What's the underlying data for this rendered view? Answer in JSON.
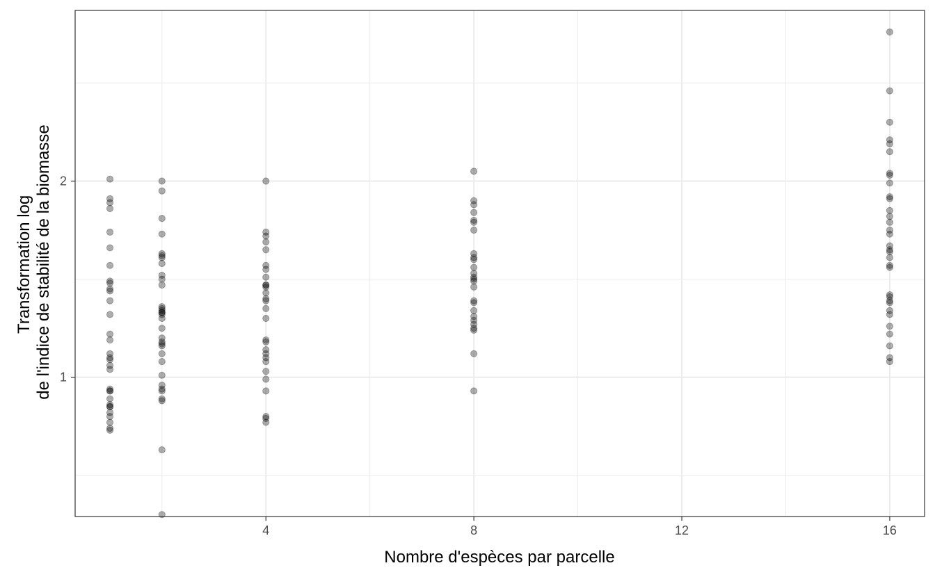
{
  "chart_data": {
    "type": "scatter",
    "xlabel": "Nombre d'espèces par parcelle",
    "ylabel_lines": [
      "Transformation log",
      "de l'indice de stabilité de la biomasse"
    ],
    "xlim": [
      0.33,
      16.67
    ],
    "ylim": [
      0.29,
      2.87
    ],
    "x_ticks": [
      4,
      8,
      12,
      16
    ],
    "x_minor_ticks": [
      2,
      6,
      10,
      14
    ],
    "y_ticks": [
      1,
      2
    ],
    "y_minor_ticks": [
      0.5,
      1.5,
      2.5
    ],
    "x_tick_labels": [
      "4",
      "8",
      "12",
      "16"
    ],
    "y_tick_labels": [
      "1",
      "2"
    ],
    "grid": true,
    "point_color": "#000000",
    "point_alpha": 0.32,
    "panel_border_color": "#333333",
    "grid_color": "#ebebeb",
    "points": [
      {
        "x": 1,
        "ys": [
          2.01,
          1.91,
          1.89,
          1.86,
          1.74,
          1.66,
          1.57,
          1.49,
          1.48,
          1.45,
          1.44,
          1.39,
          1.32,
          1.22,
          1.19,
          1.12,
          1.1,
          1.09,
          1.06,
          1.04,
          0.94,
          0.93,
          0.93,
          0.89,
          0.86,
          0.85,
          0.85,
          0.82,
          0.8,
          0.77,
          0.74,
          0.73
        ]
      },
      {
        "x": 2,
        "ys": [
          2.0,
          1.95,
          1.81,
          1.73,
          1.63,
          1.62,
          1.61,
          1.58,
          1.52,
          1.5,
          1.47,
          1.36,
          1.35,
          1.34,
          1.33,
          1.33,
          1.32,
          1.3,
          1.25,
          1.2,
          1.18,
          1.17,
          1.16,
          1.12,
          1.08,
          1.01,
          0.96,
          0.94,
          0.93,
          0.89,
          0.88,
          0.63,
          0.3
        ]
      },
      {
        "x": 4,
        "ys": [
          2.0,
          1.74,
          1.72,
          1.69,
          1.65,
          1.57,
          1.55,
          1.51,
          1.47,
          1.47,
          1.46,
          1.43,
          1.4,
          1.39,
          1.35,
          1.3,
          1.19,
          1.18,
          1.14,
          1.12,
          1.1,
          1.08,
          1.03,
          0.99,
          0.93,
          0.8,
          0.79,
          0.77
        ]
      },
      {
        "x": 8,
        "ys": [
          2.05,
          1.9,
          1.88,
          1.84,
          1.8,
          1.79,
          1.75,
          1.63,
          1.61,
          1.6,
          1.56,
          1.53,
          1.51,
          1.5,
          1.49,
          1.46,
          1.39,
          1.38,
          1.34,
          1.31,
          1.29,
          1.27,
          1.25,
          1.24,
          1.12,
          0.93
        ]
      },
      {
        "x": 16,
        "ys": [
          2.76,
          2.46,
          2.3,
          2.21,
          2.19,
          2.15,
          2.04,
          2.03,
          1.99,
          1.92,
          1.91,
          1.85,
          1.82,
          1.79,
          1.75,
          1.73,
          1.67,
          1.65,
          1.64,
          1.61,
          1.57,
          1.56,
          1.42,
          1.41,
          1.39,
          1.38,
          1.34,
          1.32,
          1.26,
          1.22,
          1.16,
          1.1,
          1.08
        ]
      }
    ]
  }
}
